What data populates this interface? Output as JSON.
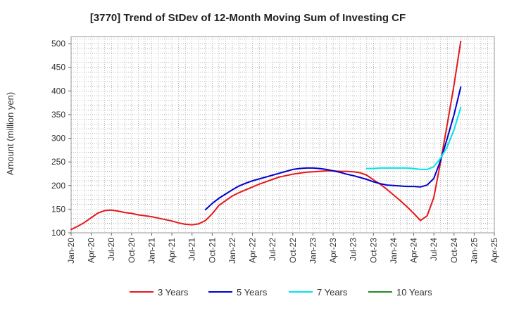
{
  "chart_data": {
    "type": "line",
    "title": "[3770]  Trend of StDev of 12-Month Moving Sum of Investing CF",
    "xlabel": "",
    "ylabel": "Amount (million yen)",
    "ylim": [
      100,
      515
    ],
    "yticks": [
      100,
      150,
      200,
      250,
      300,
      350,
      400,
      450,
      500
    ],
    "xticks": [
      "Jan-20",
      "Apr-20",
      "Jul-20",
      "Oct-20",
      "Jan-21",
      "Apr-21",
      "Jul-21",
      "Oct-21",
      "Jan-22",
      "Apr-22",
      "Jul-22",
      "Oct-22",
      "Jan-23",
      "Apr-23",
      "Jul-23",
      "Oct-23",
      "Jan-24",
      "Apr-24",
      "Jul-24",
      "Oct-24",
      "Jan-25",
      "Apr-25"
    ],
    "grid": true,
    "legend_position": "bottom",
    "series": [
      {
        "name": "3 Years",
        "color": "#e31a1c",
        "points": [
          [
            "2020-01",
            107
          ],
          [
            "2020-02",
            114
          ],
          [
            "2020-03",
            122
          ],
          [
            "2020-04",
            132
          ],
          [
            "2020-05",
            142
          ],
          [
            "2020-06",
            147
          ],
          [
            "2020-07",
            148
          ],
          [
            "2020-08",
            146
          ],
          [
            "2020-09",
            143
          ],
          [
            "2020-10",
            141
          ],
          [
            "2020-11",
            138
          ],
          [
            "2020-12",
            136
          ],
          [
            "2021-01",
            134
          ],
          [
            "2021-02",
            131
          ],
          [
            "2021-03",
            128
          ],
          [
            "2021-04",
            125
          ],
          [
            "2021-05",
            121
          ],
          [
            "2021-06",
            118
          ],
          [
            "2021-07",
            117
          ],
          [
            "2021-08",
            119
          ],
          [
            "2021-09",
            126
          ],
          [
            "2021-10",
            140
          ],
          [
            "2021-11",
            158
          ],
          [
            "2021-12",
            168
          ],
          [
            "2022-01",
            178
          ],
          [
            "2022-02",
            185
          ],
          [
            "2022-03",
            191
          ],
          [
            "2022-04",
            197
          ],
          [
            "2022-05",
            203
          ],
          [
            "2022-06",
            208
          ],
          [
            "2022-07",
            213
          ],
          [
            "2022-08",
            218
          ],
          [
            "2022-09",
            221
          ],
          [
            "2022-10",
            224
          ],
          [
            "2022-11",
            226
          ],
          [
            "2022-12",
            228
          ],
          [
            "2023-01",
            229
          ],
          [
            "2023-02",
            230
          ],
          [
            "2023-03",
            231
          ],
          [
            "2023-04",
            231
          ],
          [
            "2023-05",
            230
          ],
          [
            "2023-06",
            230
          ],
          [
            "2023-07",
            229
          ],
          [
            "2023-08",
            227
          ],
          [
            "2023-09",
            222
          ],
          [
            "2023-10",
            212
          ],
          [
            "2023-11",
            203
          ],
          [
            "2023-12",
            192
          ],
          [
            "2024-01",
            180
          ],
          [
            "2024-02",
            168
          ],
          [
            "2024-03",
            155
          ],
          [
            "2024-04",
            141
          ],
          [
            "2024-05",
            126
          ],
          [
            "2024-06",
            136
          ],
          [
            "2024-07",
            175
          ],
          [
            "2024-08",
            250
          ],
          [
            "2024-09",
            330
          ],
          [
            "2024-10",
            413
          ],
          [
            "2024-11",
            505
          ]
        ]
      },
      {
        "name": "5 Years",
        "color": "#0000cc",
        "points": [
          [
            "2021-09",
            149
          ],
          [
            "2021-10",
            162
          ],
          [
            "2021-11",
            173
          ],
          [
            "2021-12",
            182
          ],
          [
            "2022-01",
            191
          ],
          [
            "2022-02",
            199
          ],
          [
            "2022-03",
            205
          ],
          [
            "2022-04",
            210
          ],
          [
            "2022-05",
            214
          ],
          [
            "2022-06",
            218
          ],
          [
            "2022-07",
            222
          ],
          [
            "2022-08",
            226
          ],
          [
            "2022-09",
            230
          ],
          [
            "2022-10",
            234
          ],
          [
            "2022-11",
            236
          ],
          [
            "2022-12",
            237
          ],
          [
            "2023-01",
            237
          ],
          [
            "2023-02",
            236
          ],
          [
            "2023-03",
            234
          ],
          [
            "2023-04",
            231
          ],
          [
            "2023-05",
            228
          ],
          [
            "2023-06",
            224
          ],
          [
            "2023-07",
            221
          ],
          [
            "2023-08",
            217
          ],
          [
            "2023-09",
            213
          ],
          [
            "2023-10",
            208
          ],
          [
            "2023-11",
            204
          ],
          [
            "2023-12",
            201
          ],
          [
            "2024-01",
            200
          ],
          [
            "2024-02",
            199
          ],
          [
            "2024-03",
            198
          ],
          [
            "2024-04",
            198
          ],
          [
            "2024-05",
            197
          ],
          [
            "2024-06",
            201
          ],
          [
            "2024-07",
            215
          ],
          [
            "2024-08",
            253
          ],
          [
            "2024-09",
            300
          ],
          [
            "2024-10",
            350
          ],
          [
            "2024-11",
            408
          ]
        ]
      },
      {
        "name": "7 Years",
        "color": "#00e5ee",
        "points": [
          [
            "2023-09",
            236
          ],
          [
            "2023-10",
            236
          ],
          [
            "2023-11",
            237
          ],
          [
            "2023-12",
            237
          ],
          [
            "2024-01",
            237
          ],
          [
            "2024-02",
            237
          ],
          [
            "2024-03",
            237
          ],
          [
            "2024-04",
            236
          ],
          [
            "2024-05",
            234
          ],
          [
            "2024-06",
            234
          ],
          [
            "2024-07",
            240
          ],
          [
            "2024-08",
            258
          ],
          [
            "2024-09",
            282
          ],
          [
            "2024-10",
            318
          ],
          [
            "2024-11",
            365
          ]
        ]
      },
      {
        "name": "10 Years",
        "color": "#228b22",
        "points": []
      }
    ]
  }
}
